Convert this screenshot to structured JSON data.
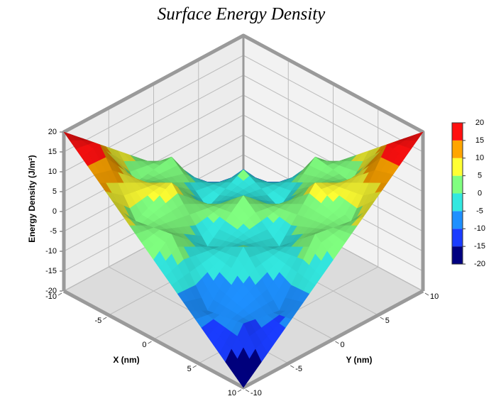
{
  "chart_data": {
    "type": "surface",
    "title": "Surface Energy Density",
    "x_label": "X (nm)",
    "y_label": "Y (nm)",
    "z_label": "Energy Density (J/m²)",
    "x": [
      -10,
      -8,
      -6,
      -4,
      -2,
      0,
      2,
      4,
      6,
      8,
      10
    ],
    "y": [
      -10,
      -8,
      -6,
      -4,
      -2,
      0,
      2,
      4,
      6,
      8,
      10
    ],
    "z": [
      [
        20,
        16,
        12,
        8,
        4,
        0,
        -4,
        -8,
        -12,
        -16,
        -20
      ],
      [
        16,
        16.8,
        9.6,
        2.4,
        3.2,
        4,
        -3.2,
        -10.4,
        -9.6,
        -8.8,
        -16
      ],
      [
        12,
        9.6,
        7.2,
        4.8,
        2.4,
        0,
        -2.4,
        -4.8,
        -7.2,
        -9.6,
        -12
      ],
      [
        8,
        2.4,
        4.8,
        7.2,
        1.6,
        -4,
        -1.6,
        0.8,
        -4.8,
        -10.4,
        -8
      ],
      [
        4,
        3.2,
        2.4,
        1.6,
        0.8,
        0,
        -0.8,
        -1.6,
        -2.4,
        -3.2,
        -4
      ],
      [
        0,
        4,
        0,
        -4,
        0,
        4,
        0,
        -4,
        0,
        4,
        0
      ],
      [
        -4,
        -3.2,
        -2.4,
        -1.6,
        -0.8,
        0,
        0.8,
        1.6,
        2.4,
        3.2,
        4
      ],
      [
        -8,
        -10.4,
        -4.8,
        0.8,
        -1.6,
        -4,
        1.6,
        7.2,
        4.8,
        2.4,
        8
      ],
      [
        -12,
        -9.6,
        -7.2,
        -4.8,
        -2.4,
        0,
        2.4,
        4.8,
        7.2,
        9.6,
        12
      ],
      [
        -16,
        -8.8,
        -9.6,
        -10.4,
        -3.2,
        4,
        3.2,
        2.4,
        9.6,
        16.8,
        16
      ],
      [
        -20,
        -16,
        -12,
        -8,
        -4,
        0,
        4,
        8,
        12,
        16,
        20
      ]
    ],
    "xlim": [
      -10,
      10
    ],
    "ylim": [
      -10,
      10
    ],
    "zlim": [
      -20,
      20
    ],
    "xticks": [
      -10,
      -5,
      0,
      5,
      10
    ],
    "yticks": [
      -10,
      -5,
      0,
      5,
      10
    ],
    "zticks": [
      -20,
      -15,
      -10,
      -5,
      0,
      5,
      10,
      15,
      20
    ],
    "band_colors": [
      "#000080",
      "#1a3cff",
      "#1e90ff",
      "#33e8e0",
      "#80ff80",
      "#ffff33",
      "#ffa500",
      "#ff1010"
    ],
    "grid": true
  }
}
